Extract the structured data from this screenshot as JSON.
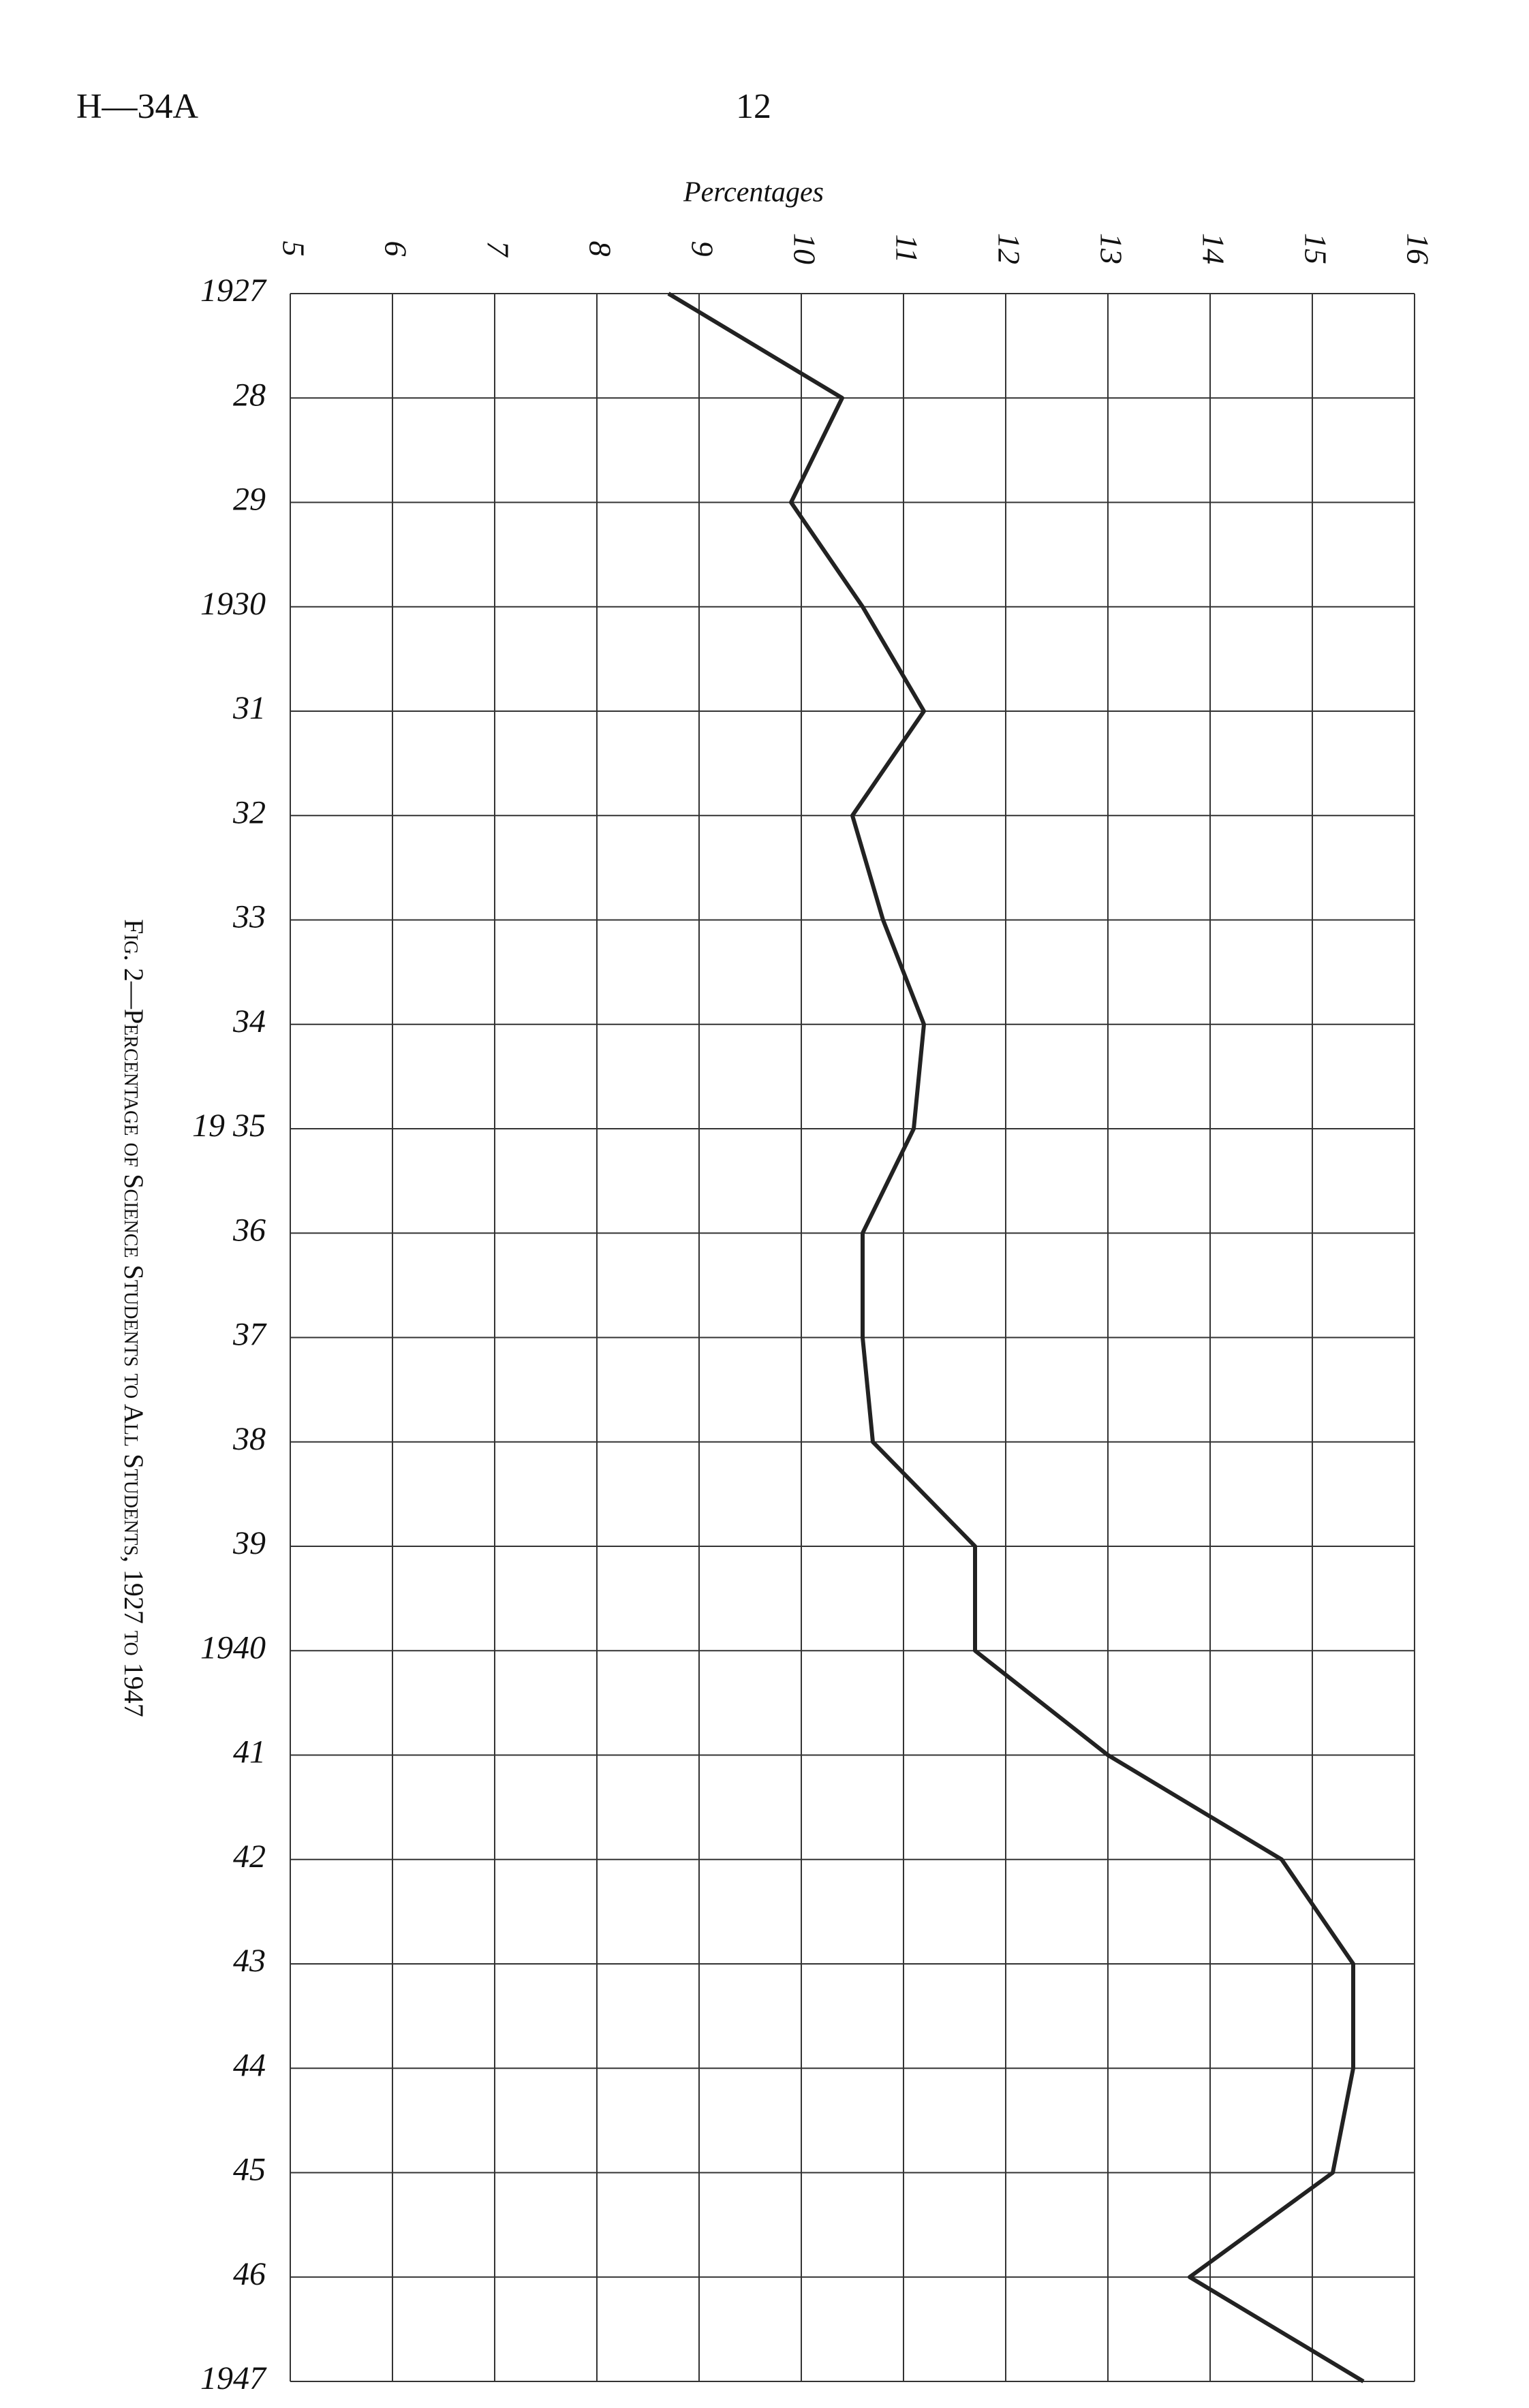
{
  "header": {
    "code": "H—34A",
    "page": "12"
  },
  "chart_data": {
    "type": "line",
    "orientation": "horizontal",
    "xlabel": "Percentages",
    "caption": "Fig. 2—Percentage of Science Students to All Students, 1927 to 1947",
    "categories": [
      "1927",
      "28",
      "29",
      "1930",
      "31",
      "32",
      "33",
      "34",
      "19 35",
      "36",
      "37",
      "38",
      "39",
      "1940",
      "41",
      "42",
      "43",
      "44",
      "45",
      "46",
      "1947"
    ],
    "values": [
      8.7,
      10.4,
      9.9,
      10.6,
      11.2,
      10.5,
      10.8,
      11.2,
      11.1,
      10.6,
      10.6,
      10.7,
      11.7,
      11.7,
      13.0,
      14.7,
      15.4,
      15.4,
      15.2,
      13.8,
      15.5
    ],
    "color": "#222222",
    "xlim": [
      5,
      16
    ],
    "xticks": [
      5,
      6,
      7,
      8,
      9,
      10,
      11,
      12,
      13,
      14,
      15,
      16
    ],
    "grid": true
  }
}
